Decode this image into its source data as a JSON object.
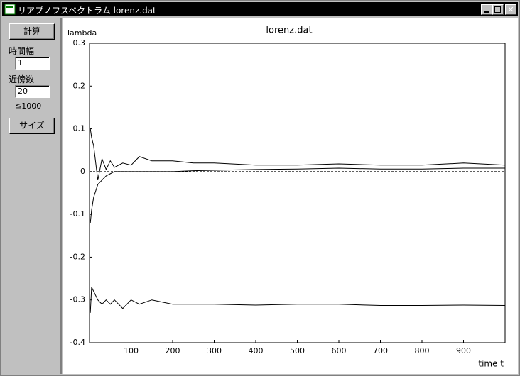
{
  "window": {
    "title": "リアプノフスペクトラム lorenz.dat"
  },
  "sidebar": {
    "calc_button": "計算",
    "time_width_label": "時間幅",
    "time_width_value": "1",
    "neighbors_label": "近傍数",
    "neighbors_value": "20",
    "neighbors_note": "≦1000",
    "size_button": "サイズ"
  },
  "chart_data": {
    "type": "line",
    "title": "lorenz.dat",
    "y_label": "lambda",
    "x_label": "time  t",
    "x": [
      2,
      5,
      10,
      20,
      30,
      40,
      50,
      60,
      80,
      100,
      120,
      150,
      200,
      250,
      300,
      400,
      500,
      600,
      700,
      800,
      900,
      1000
    ],
    "series": [
      {
        "color": "#000000",
        "values": [
          0.1,
          0.08,
          0.06,
          -0.02,
          0.03,
          0.005,
          0.025,
          0.01,
          0.02,
          0.015,
          0.035,
          0.025,
          0.025,
          0.02,
          0.02,
          0.015,
          0.015,
          0.018,
          0.015,
          0.015,
          0.02,
          0.015
        ]
      },
      {
        "color": "#000000",
        "values": [
          -0.12,
          -0.09,
          -0.06,
          -0.03,
          -0.02,
          -0.01,
          -0.005,
          0,
          0,
          0,
          0,
          0,
          0,
          0.002,
          0.003,
          0.005,
          0.006,
          0.008,
          0.006,
          0.006,
          0.008,
          0.008
        ]
      },
      {
        "color": "#000000",
        "values": [
          -0.33,
          -0.27,
          -0.28,
          -0.3,
          -0.31,
          -0.3,
          -0.31,
          -0.3,
          -0.32,
          -0.3,
          -0.31,
          -0.3,
          -0.31,
          -0.31,
          -0.31,
          -0.312,
          -0.31,
          -0.31,
          -0.313,
          -0.313,
          -0.312,
          -0.313
        ]
      }
    ],
    "reference_line": {
      "value": 0,
      "dashed": true
    },
    "xlim": [
      0,
      1000
    ],
    "ylim": [
      -0.4,
      0.3
    ],
    "xticks": [
      100,
      200,
      300,
      400,
      500,
      600,
      700,
      800,
      900
    ],
    "yticks": [
      -0.4,
      -0.3,
      -0.2,
      -0.1,
      0,
      0.1,
      0.2,
      0.3
    ],
    "grid": false
  }
}
